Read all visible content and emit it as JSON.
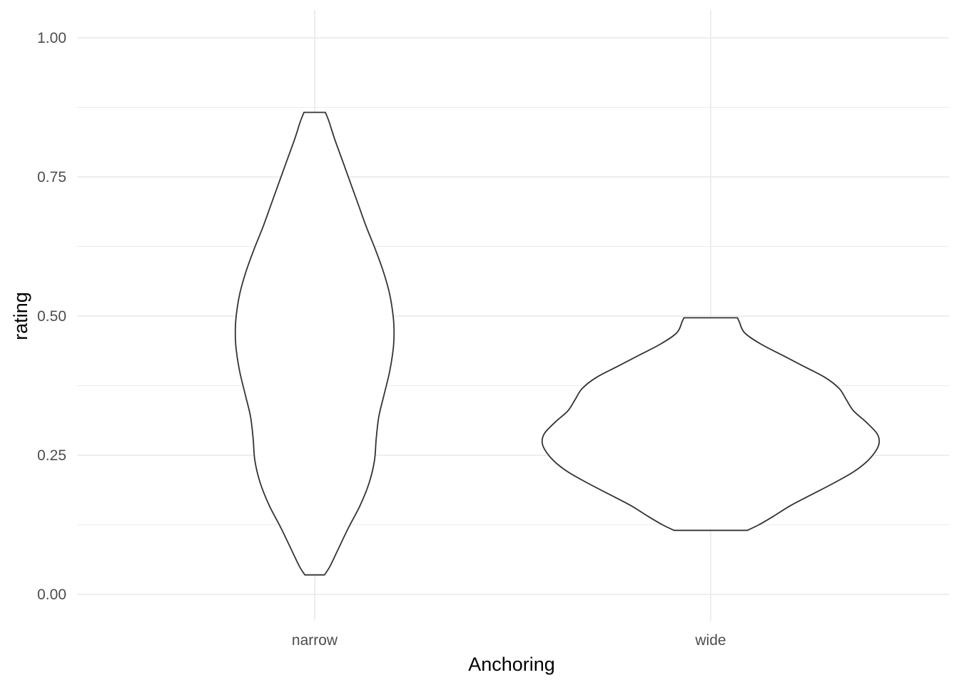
{
  "chart_data": {
    "type": "violin",
    "title": "",
    "xlabel": "Anchoring",
    "ylabel": "rating",
    "ylim": [
      -0.05,
      1.02
    ],
    "y_ticks": [
      0.0,
      0.25,
      0.5,
      0.75,
      1.0
    ],
    "y_tick_labels": [
      "0.00",
      "0.25",
      "0.50",
      "0.75",
      "1.00"
    ],
    "y_minor_ticks": [
      0.125,
      0.375,
      0.625,
      0.875
    ],
    "categories": [
      "narrow",
      "wide"
    ],
    "grid": true,
    "legend": "none",
    "colors": {
      "outline": "#333333",
      "fill": "#ffffff",
      "grid": "#ebebeb"
    },
    "violins": [
      {
        "category": "narrow",
        "y_min": 0.035,
        "y_max": 0.866,
        "density_profile": [
          [
            0.035,
            0.055
          ],
          [
            0.05,
            0.085
          ],
          [
            0.08,
            0.13
          ],
          [
            0.12,
            0.19
          ],
          [
            0.16,
            0.255
          ],
          [
            0.2,
            0.305
          ],
          [
            0.24,
            0.335
          ],
          [
            0.28,
            0.345
          ],
          [
            0.32,
            0.36
          ],
          [
            0.36,
            0.39
          ],
          [
            0.4,
            0.42
          ],
          [
            0.44,
            0.44
          ],
          [
            0.47,
            0.445
          ],
          [
            0.5,
            0.44
          ],
          [
            0.54,
            0.42
          ],
          [
            0.58,
            0.385
          ],
          [
            0.62,
            0.34
          ],
          [
            0.66,
            0.29
          ],
          [
            0.7,
            0.245
          ],
          [
            0.74,
            0.2
          ],
          [
            0.78,
            0.155
          ],
          [
            0.82,
            0.11
          ],
          [
            0.85,
            0.08
          ],
          [
            0.866,
            0.06
          ]
        ]
      },
      {
        "category": "wide",
        "y_min": 0.115,
        "y_max": 0.497,
        "density_profile": [
          [
            0.115,
            0.205
          ],
          [
            0.125,
            0.27
          ],
          [
            0.14,
            0.35
          ],
          [
            0.16,
            0.45
          ],
          [
            0.18,
            0.57
          ],
          [
            0.2,
            0.69
          ],
          [
            0.22,
            0.8
          ],
          [
            0.24,
            0.88
          ],
          [
            0.26,
            0.93
          ],
          [
            0.275,
            0.945
          ],
          [
            0.29,
            0.93
          ],
          [
            0.31,
            0.87
          ],
          [
            0.33,
            0.8
          ],
          [
            0.35,
            0.76
          ],
          [
            0.37,
            0.72
          ],
          [
            0.39,
            0.64
          ],
          [
            0.41,
            0.52
          ],
          [
            0.43,
            0.4
          ],
          [
            0.45,
            0.28
          ],
          [
            0.47,
            0.19
          ],
          [
            0.49,
            0.16
          ],
          [
            0.497,
            0.15
          ]
        ]
      }
    ]
  }
}
